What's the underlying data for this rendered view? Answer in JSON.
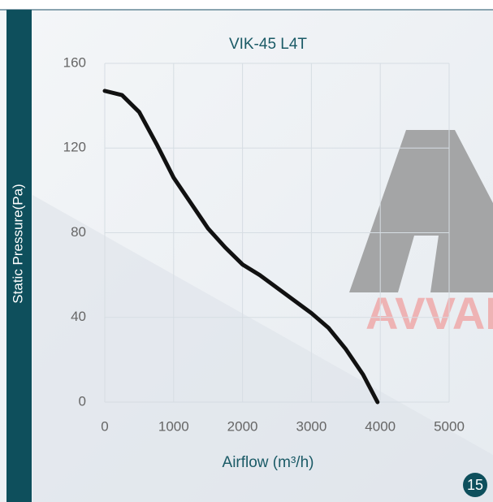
{
  "chart_data": {
    "type": "line",
    "title": "VIK-45 L4T",
    "x_label": "Airflow (m³/h)",
    "y_label": "Static Pressure(Pa)",
    "watermark": "AVVAL",
    "page_number": "15",
    "x": [
      0,
      250,
      500,
      750,
      1000,
      1250,
      1500,
      1750,
      2000,
      2250,
      2500,
      2750,
      3000,
      3250,
      3500,
      3750,
      3960
    ],
    "series": [
      {
        "name": "VIK-45 L4T",
        "color": "#111111",
        "values": [
          147,
          145,
          137,
          122,
          106,
          94,
          82,
          73,
          65,
          60,
          54,
          48,
          42,
          35,
          25,
          13,
          0
        ]
      }
    ],
    "xlim": [
      0,
      5000
    ],
    "xticks": [
      0,
      1000,
      2000,
      3000,
      4000,
      5000
    ],
    "ylim": [
      0,
      160
    ],
    "yticks": [
      0,
      40,
      80,
      120,
      160
    ],
    "grid": true
  }
}
